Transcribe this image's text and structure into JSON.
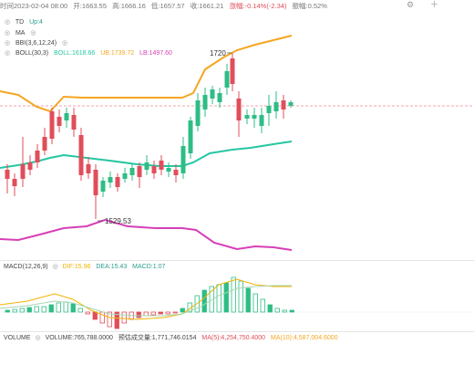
{
  "ohlc": {
    "time": "时间2023-02-04 08:00",
    "open": "开:1663.55",
    "high": "高:1666.16",
    "low": "低:1657.57",
    "close": "收:1661.21",
    "change": "涨幅:-0.14%(-2.34)",
    "amplitude": "振幅:0.52%"
  },
  "indicators": {
    "td": {
      "name": "TD",
      "value": "Up:4",
      "color": "#2a9d8f"
    },
    "ma": {
      "name": "MA",
      "value": ""
    },
    "bbi": {
      "name": "BBI(3,6,12,24)",
      "value": ""
    },
    "boll": {
      "name": "BOLL(30,3)",
      "boll": "BOLL:1618.66",
      "ub": "UB:1739.72",
      "lb": "LB:1497.60",
      "colors": {
        "boll": "#26c6a2",
        "ub": "#f5a623",
        "lb": "#d63fb8"
      }
    }
  },
  "annotations": {
    "high_label": "1720",
    "low_label": "1529.53"
  },
  "macd": {
    "name": "MACD(12,26,9)",
    "dif": "DIF:15.96",
    "dea": "DEA:15.43",
    "macd": "MACD:1.07"
  },
  "volume": {
    "name": "VOLUME",
    "volume": "VOLUME:765,788.0000",
    "estimate": "预估成交量:1,771,746.0154",
    "ma5": "MA(5):4,254,750.4000",
    "ma10": "MA(10):4,587,004.6000"
  },
  "colors": {
    "up": "#2ebd85",
    "down": "#e04e5a",
    "ub": "#f5a623",
    "mid": "#26c6a2",
    "lb": "#d63fb8",
    "dif": "#f0b400",
    "dea": "#a9d6b0",
    "last_price": "#e04e5a"
  },
  "icons": [
    "gear-icon",
    "plus-icon",
    "eye-icon",
    "close-icon",
    "settings-icon",
    "more-icon"
  ]
}
